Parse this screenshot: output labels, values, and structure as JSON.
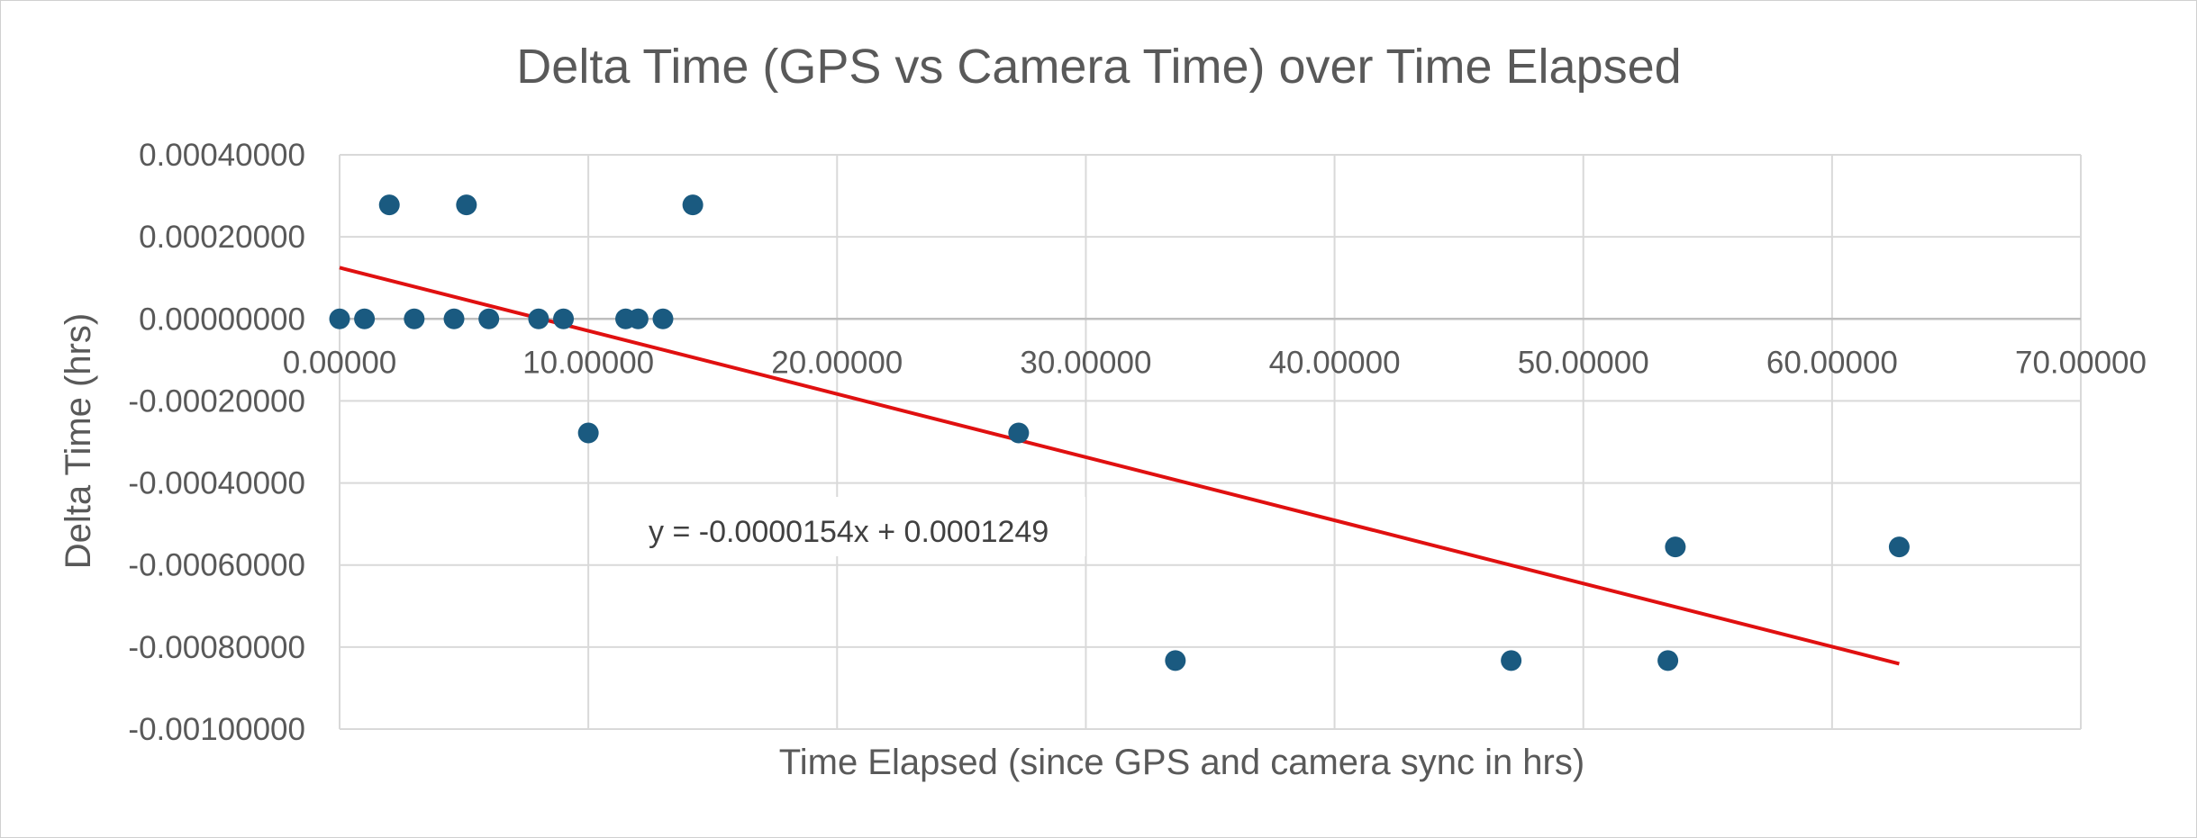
{
  "chart_data": {
    "type": "scatter",
    "title": "Delta Time (GPS vs Camera Time) over Time Elapsed",
    "xlabel": "Time Elapsed (since GPS and camera sync in hrs)",
    "ylabel": "Delta Time (hrs)",
    "xlim": [
      0,
      70
    ],
    "ylim": [
      -0.001,
      0.0004
    ],
    "x_ticks": [
      0,
      10,
      20,
      30,
      40,
      50,
      60,
      70
    ],
    "x_tick_labels": [
      "0.00000",
      "10.00000",
      "20.00000",
      "30.00000",
      "40.00000",
      "50.00000",
      "60.00000",
      "70.00000"
    ],
    "y_ticks": [
      0.0004,
      0.0002,
      0,
      -0.0002,
      -0.0004,
      -0.0006,
      -0.0008,
      -0.001
    ],
    "y_tick_labels": [
      "0.00040000",
      "0.00020000",
      "0.00000000",
      "-0.00020000",
      "-0.00040000",
      "-0.00060000",
      "-0.00080000",
      "-0.00100000"
    ],
    "grid": true,
    "marker_color": "#1a5a80",
    "trendline_color": "#e01010",
    "series": [
      {
        "points": [
          {
            "x": 0.0,
            "y": 0.0
          },
          {
            "x": 1.0,
            "y": 0.0
          },
          {
            "x": 2.0,
            "y": 0.000278
          },
          {
            "x": 3.0,
            "y": 0.0
          },
          {
            "x": 4.6,
            "y": 0.0
          },
          {
            "x": 5.1,
            "y": 0.000278
          },
          {
            "x": 6.0,
            "y": 0.0
          },
          {
            "x": 8.0,
            "y": 0.0
          },
          {
            "x": 9.0,
            "y": 0.0
          },
          {
            "x": 10.0,
            "y": -0.000278
          },
          {
            "x": 11.5,
            "y": 0.0
          },
          {
            "x": 12.0,
            "y": 0.0
          },
          {
            "x": 13.0,
            "y": 0.0
          },
          {
            "x": 14.2,
            "y": 0.000278
          },
          {
            "x": 27.3,
            "y": -0.000278
          },
          {
            "x": 33.6,
            "y": -0.000833
          },
          {
            "x": 47.1,
            "y": -0.000833
          },
          {
            "x": 53.4,
            "y": -0.000833
          },
          {
            "x": 53.7,
            "y": -0.000556
          },
          {
            "x": 62.7,
            "y": -0.000556
          }
        ]
      }
    ],
    "trendline": {
      "type": "linear",
      "slope": -1.54e-05,
      "intercept": 0.0001249,
      "x_range": [
        0,
        62.7
      ],
      "equation_label": "y = -0.0000154x + 0.0001249"
    }
  }
}
